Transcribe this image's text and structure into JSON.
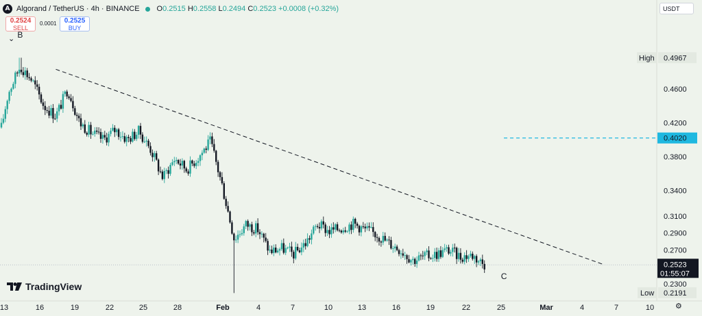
{
  "header": {
    "symbol": "Algorand / TetherUS · 4h · BINANCE",
    "open_label": "O",
    "open": "0.2515",
    "high_label": "H",
    "high": "0.2558",
    "low_label": "L",
    "low": "0.2494",
    "close_label": "C",
    "close": "0.2523",
    "change": "+0.0008 (+0.32%)"
  },
  "trade": {
    "sell_price": "0.2524",
    "sell_label": "SELL",
    "spread": "0.0001",
    "buy_price": "0.2525",
    "buy_label": "BUY"
  },
  "currency_button": "USDT",
  "watermark": "TradingView",
  "colors": {
    "up": "#26a69a",
    "down": "#131722",
    "background": "#eef3ec",
    "level_line": "#1fb8e0",
    "price_label_bg": "#131722"
  },
  "chart_data": {
    "type": "candlestick",
    "ylim": [
      0.213,
      0.547
    ],
    "y_ticks": [
      "0.4600",
      "0.4200",
      "0.3800",
      "0.3400",
      "0.3100",
      "0.2900",
      "0.2700",
      "0.2300"
    ],
    "x_ticks": [
      "13",
      "16",
      "19",
      "22",
      "25",
      "28",
      "Feb",
      "4",
      "7",
      "10",
      "13",
      "16",
      "19",
      "22",
      "25",
      "Mar",
      "4",
      "7",
      "10"
    ],
    "high_label": "High",
    "high_value": "0.4967",
    "low_label": "Low",
    "low_value": "0.2191",
    "current_price": "0.2523",
    "countdown": "01:55:07",
    "level_price": "0.4020",
    "annotations": [
      "B",
      "C"
    ],
    "trendline": {
      "start": [
        "Jan 19",
        0.483
      ],
      "end": [
        "Mar 5",
        0.253
      ]
    },
    "price_path": [
      [
        "Jan 12",
        0.368
      ],
      [
        "Jan 13",
        0.348
      ],
      [
        "Jan 14",
        0.385
      ],
      [
        "Jan 15",
        0.455
      ],
      [
        "Jan 16",
        0.487
      ],
      [
        "Jan 17",
        0.47
      ],
      [
        "Jan 18",
        0.44
      ],
      [
        "Jan 19",
        0.428
      ],
      [
        "Jan 20",
        0.46
      ],
      [
        "Jan 21",
        0.42
      ],
      [
        "Jan 22",
        0.408
      ],
      [
        "Jan 23",
        0.4
      ],
      [
        "Jan 24",
        0.412
      ],
      [
        "Jan 25",
        0.4
      ],
      [
        "Jan 26",
        0.41
      ],
      [
        "Jan 27",
        0.388
      ],
      [
        "Jan 28",
        0.355
      ],
      [
        "Jan 29",
        0.378
      ],
      [
        "Jan 30",
        0.365
      ],
      [
        "Jan 31",
        0.38
      ],
      [
        "Feb 1",
        0.398
      ],
      [
        "Feb 2",
        0.345
      ],
      [
        "Feb 3",
        0.283
      ],
      [
        "Feb 4",
        0.3
      ],
      [
        "Feb 5",
        0.294
      ],
      [
        "Feb 6",
        0.268
      ],
      [
        "Feb 7",
        0.272
      ],
      [
        "Feb 8",
        0.265
      ],
      [
        "Feb 9",
        0.278
      ],
      [
        "Feb 10",
        0.3
      ],
      [
        "Feb 11",
        0.292
      ],
      [
        "Feb 12",
        0.296
      ],
      [
        "Feb 13",
        0.301
      ],
      [
        "Feb 14",
        0.294
      ],
      [
        "Feb 15",
        0.288
      ],
      [
        "Feb 16",
        0.278
      ],
      [
        "Feb 17",
        0.27
      ],
      [
        "Feb 18",
        0.258
      ],
      [
        "Feb 19",
        0.262
      ],
      [
        "Feb 20",
        0.265
      ],
      [
        "Feb 21",
        0.27
      ],
      [
        "Feb 22",
        0.262
      ],
      [
        "Feb 23",
        0.264
      ],
      [
        "Feb 24",
        0.253
      ]
    ]
  }
}
